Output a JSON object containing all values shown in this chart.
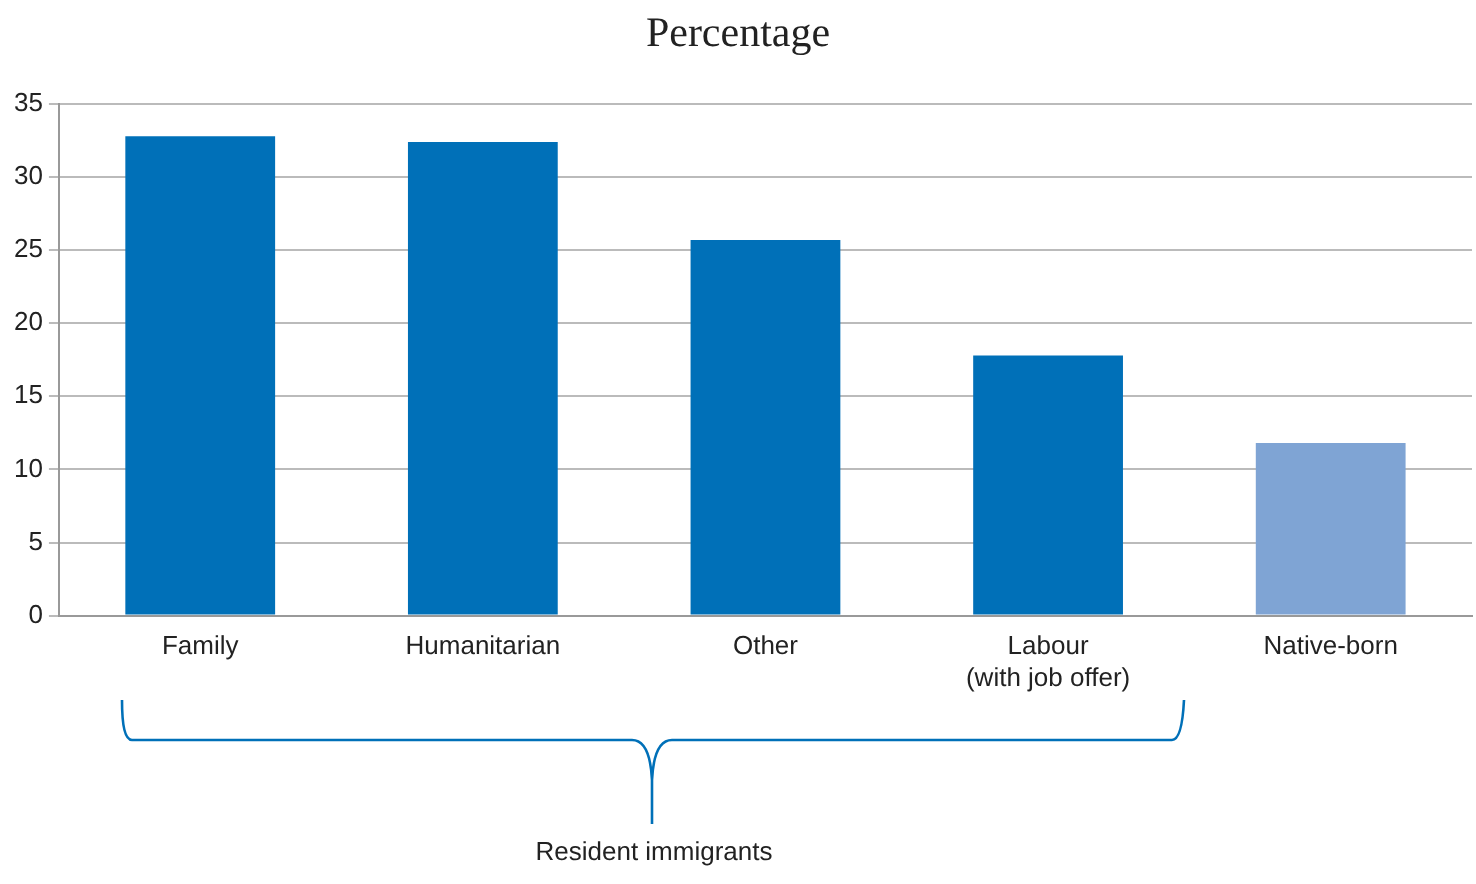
{
  "chart_data": {
    "type": "bar",
    "title": "Percentage",
    "categories": [
      "Family",
      "Humanitarian",
      "Other",
      "Labour\n(with job offer)",
      "Native-born"
    ],
    "values": [
      32.8,
      32.4,
      25.7,
      17.8,
      11.8
    ],
    "colors": [
      "#0070b8",
      "#0070b8",
      "#0070b8",
      "#0070b8",
      "#7fa4d4"
    ],
    "ylim": [
      0,
      35
    ],
    "yticks": [
      0,
      5,
      10,
      15,
      20,
      25,
      30,
      35
    ],
    "grid": "y",
    "legend": false,
    "annotations": [
      "Resident immigrants"
    ]
  }
}
